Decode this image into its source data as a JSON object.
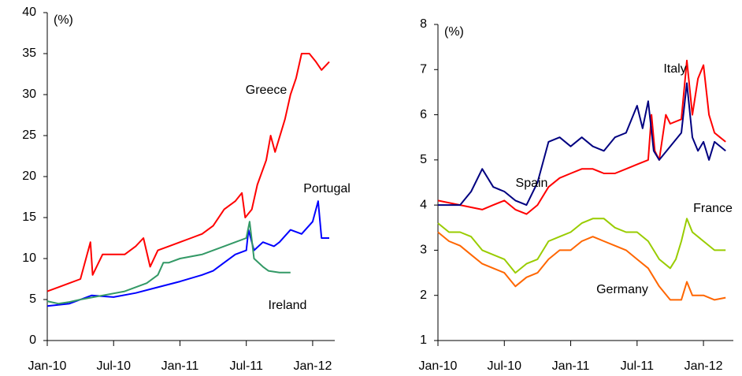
{
  "chart_data": [
    {
      "type": "line",
      "y_label": "(%)",
      "xlim": [
        0,
        26
      ],
      "xticks": [
        {
          "value": 0,
          "label": "Jan-10"
        },
        {
          "value": 6,
          "label": "Jul-10"
        },
        {
          "value": 12,
          "label": "Jan-11"
        },
        {
          "value": 18,
          "label": "Jul-11"
        },
        {
          "value": 24,
          "label": "Jan-12"
        }
      ],
      "ylim": [
        0,
        40
      ],
      "yticks": [
        0,
        5,
        10,
        15,
        20,
        25,
        30,
        35,
        40
      ],
      "series": [
        {
          "name": "Greece",
          "color": "#ff0000",
          "x": [
            0,
            1,
            2,
            3,
            3.9,
            4.1,
            5,
            6,
            7,
            8,
            8.7,
            9.3,
            10,
            11,
            12,
            13,
            14,
            15,
            16,
            17,
            17.6,
            17.9,
            18.5,
            19,
            19.8,
            20.2,
            20.6,
            21.5,
            22,
            22.5,
            23,
            23.7,
            24.3,
            24.8,
            25.5
          ],
          "values": [
            6,
            6.5,
            7,
            7.5,
            12,
            8,
            10.5,
            10.5,
            10.5,
            11.5,
            12.5,
            9,
            11,
            11.5,
            12,
            12.5,
            13,
            14,
            16,
            17,
            18,
            15,
            16,
            19,
            22,
            25,
            23,
            27,
            30,
            32,
            35,
            35,
            34,
            33,
            34
          ]
        },
        {
          "name": "Portugal",
          "color": "#0000ff",
          "x": [
            0,
            2,
            3,
            4,
            6,
            8,
            10,
            12,
            14,
            15,
            16,
            17,
            18,
            18.2,
            18.7,
            19.5,
            20.5,
            21,
            22,
            23,
            24,
            24.5,
            24.8,
            25.5
          ],
          "values": [
            4.2,
            4.5,
            5,
            5.5,
            5.3,
            5.8,
            6.5,
            7.2,
            8,
            8.5,
            9.5,
            10.5,
            11,
            13.5,
            11,
            12,
            11.5,
            12,
            13.5,
            13,
            14.5,
            17,
            12.5,
            12.5
          ]
        },
        {
          "name": "Ireland",
          "color": "#339966",
          "x": [
            0,
            1,
            2,
            3,
            5,
            7,
            9,
            10,
            10.5,
            11,
            12,
            14,
            16,
            17,
            18,
            18.3,
            18.7,
            19.5,
            20,
            21,
            22
          ],
          "values": [
            4.8,
            4.5,
            4.7,
            5,
            5.5,
            6,
            7,
            8,
            9.5,
            9.5,
            10,
            10.5,
            11.5,
            12,
            12.5,
            14.5,
            10,
            9,
            8.5,
            8.3,
            8.3
          ]
        }
      ]
    },
    {
      "type": "line",
      "y_label": "(%)",
      "xlim": [
        0,
        26.7
      ],
      "xticks": [
        {
          "value": 0,
          "label": "Jan-10"
        },
        {
          "value": 6,
          "label": "Jul-10"
        },
        {
          "value": 12,
          "label": "Jan-11"
        },
        {
          "value": 18,
          "label": "Jul-11"
        },
        {
          "value": 24,
          "label": "Jan-12"
        }
      ],
      "ylim": [
        1,
        8
      ],
      "yticks": [
        1,
        2,
        3,
        4,
        5,
        6,
        7,
        8
      ],
      "series": [
        {
          "name": "Italy",
          "color": "#ff0000",
          "x": [
            0,
            2,
            4,
            5,
            6,
            7,
            8,
            9,
            10,
            11,
            12,
            13,
            14,
            15,
            16,
            17,
            18,
            19,
            19.3,
            19.6,
            20,
            20.6,
            21,
            22,
            22.5,
            23,
            23.5,
            24,
            24.5,
            25,
            25.5,
            26
          ],
          "values": [
            4.1,
            4.0,
            3.9,
            4.0,
            4.1,
            3.9,
            3.8,
            4.0,
            4.4,
            4.6,
            4.7,
            4.8,
            4.8,
            4.7,
            4.7,
            4.8,
            4.9,
            5.0,
            6.0,
            5.2,
            5.0,
            6.0,
            5.8,
            5.9,
            7.2,
            6.0,
            6.8,
            7.1,
            6.0,
            5.6,
            5.5,
            5.4
          ]
        },
        {
          "name": "Spain",
          "color": "#000080",
          "x": [
            0,
            2,
            3,
            4,
            5,
            6,
            7,
            8,
            9,
            10,
            11,
            12,
            13,
            14,
            15,
            16,
            17,
            18,
            18.5,
            19,
            19.5,
            20,
            21,
            22,
            22.5,
            23,
            23.5,
            24,
            24.5,
            25,
            26
          ],
          "values": [
            4.0,
            4.0,
            4.3,
            4.8,
            4.4,
            4.3,
            4.1,
            4.0,
            4.5,
            5.4,
            5.5,
            5.3,
            5.5,
            5.3,
            5.2,
            5.5,
            5.6,
            6.2,
            5.7,
            6.3,
            5.2,
            5.0,
            5.3,
            5.6,
            6.7,
            5.5,
            5.2,
            5.4,
            5.0,
            5.4,
            5.2
          ]
        },
        {
          "name": "France",
          "color": "#99cc00",
          "x": [
            0,
            1,
            2,
            3,
            4,
            5,
            6,
            7,
            8,
            9,
            10,
            11,
            12,
            13,
            14,
            15,
            16,
            17,
            18,
            19,
            20,
            21,
            21.5,
            22,
            22.5,
            23,
            24,
            25,
            26
          ],
          "values": [
            3.6,
            3.4,
            3.4,
            3.3,
            3.0,
            2.9,
            2.8,
            2.5,
            2.7,
            2.8,
            3.2,
            3.3,
            3.4,
            3.6,
            3.7,
            3.7,
            3.5,
            3.4,
            3.4,
            3.2,
            2.8,
            2.6,
            2.8,
            3.2,
            3.7,
            3.4,
            3.2,
            3.0,
            3.0
          ]
        },
        {
          "name": "Germany",
          "color": "#ff6600",
          "x": [
            0,
            1,
            2,
            3,
            4,
            5,
            6,
            7,
            8,
            9,
            10,
            11,
            12,
            13,
            14,
            15,
            16,
            17,
            18,
            19,
            20,
            21,
            22,
            22.5,
            23,
            24,
            25,
            26
          ],
          "values": [
            3.4,
            3.2,
            3.1,
            2.9,
            2.7,
            2.6,
            2.5,
            2.2,
            2.4,
            2.5,
            2.8,
            3.0,
            3.0,
            3.2,
            3.3,
            3.2,
            3.1,
            3.0,
            2.8,
            2.6,
            2.2,
            1.9,
            1.9,
            2.3,
            2.0,
            2.0,
            1.9,
            1.95
          ]
        }
      ]
    }
  ]
}
